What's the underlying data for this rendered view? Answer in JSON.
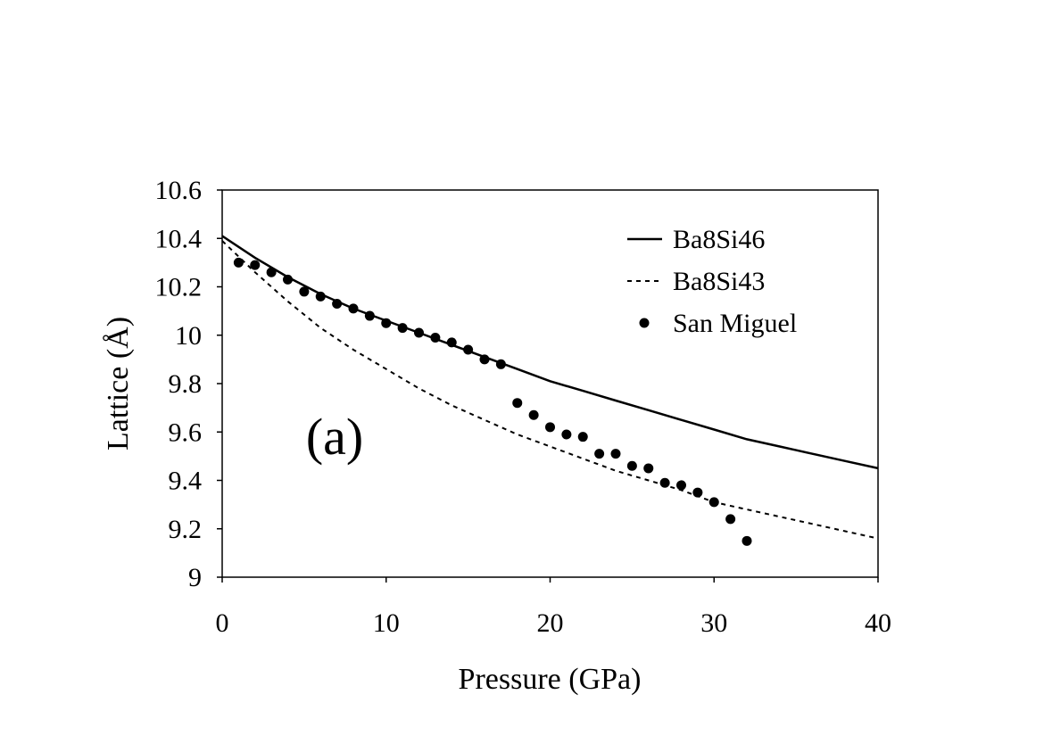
{
  "chart_data": {
    "type": "line",
    "title": "",
    "xlabel": "Pressure (GPa)",
    "ylabel": "Lattice (Å)",
    "xlim": [
      0,
      40
    ],
    "ylim": [
      9,
      10.6
    ],
    "x_ticks": [
      0,
      10,
      20,
      30,
      40
    ],
    "y_ticks": [
      9,
      9.2,
      9.4,
      9.6,
      9.8,
      10,
      10.2,
      10.4,
      10.6
    ],
    "x_tick_labels": [
      "0",
      "10",
      "20",
      "30",
      "40"
    ],
    "y_tick_labels": [
      "9",
      "9.2",
      "9.4",
      "9.6",
      "9.8",
      "10",
      "10.2",
      "10.4",
      "10.6"
    ],
    "grid": false,
    "legend_position": "top-right",
    "annotation": "(a)",
    "series": [
      {
        "name": "Ba8Si46",
        "style": "solid-line",
        "x": [
          0,
          2,
          4,
          6,
          8,
          10,
          12,
          14,
          16,
          18,
          20,
          22,
          24,
          26,
          28,
          30,
          32,
          34,
          36,
          38,
          40
        ],
        "y": [
          10.41,
          10.32,
          10.24,
          10.17,
          10.11,
          10.06,
          10.01,
          9.96,
          9.91,
          9.86,
          9.81,
          9.77,
          9.73,
          9.69,
          9.65,
          9.61,
          9.57,
          9.54,
          9.51,
          9.48,
          9.45
        ]
      },
      {
        "name": "Ba8Si43",
        "style": "dashed-line",
        "x": [
          0,
          2,
          4,
          6,
          8,
          10,
          12,
          14,
          16,
          18,
          20,
          22,
          24,
          26,
          28,
          30,
          32,
          34,
          36,
          38,
          40
        ],
        "y": [
          10.39,
          10.26,
          10.14,
          10.03,
          9.94,
          9.86,
          9.78,
          9.71,
          9.65,
          9.59,
          9.54,
          9.49,
          9.44,
          9.4,
          9.36,
          9.31,
          9.28,
          9.25,
          9.22,
          9.19,
          9.16
        ]
      },
      {
        "name": "San Miguel",
        "style": "markers",
        "x": [
          1,
          2,
          3,
          4,
          5,
          6,
          7,
          8,
          9,
          10,
          11,
          12,
          13,
          14,
          15,
          16,
          17,
          18,
          19,
          20,
          21,
          22,
          23,
          24,
          25,
          26,
          27,
          28,
          29,
          30,
          31,
          32
        ],
        "y": [
          10.3,
          10.29,
          10.26,
          10.23,
          10.18,
          10.16,
          10.13,
          10.11,
          10.08,
          10.05,
          10.03,
          10.01,
          9.99,
          9.97,
          9.94,
          9.9,
          9.88,
          9.72,
          9.67,
          9.62,
          9.59,
          9.58,
          9.51,
          9.51,
          9.46,
          9.45,
          9.39,
          9.38,
          9.35,
          9.31,
          9.24,
          9.15
        ]
      }
    ]
  }
}
